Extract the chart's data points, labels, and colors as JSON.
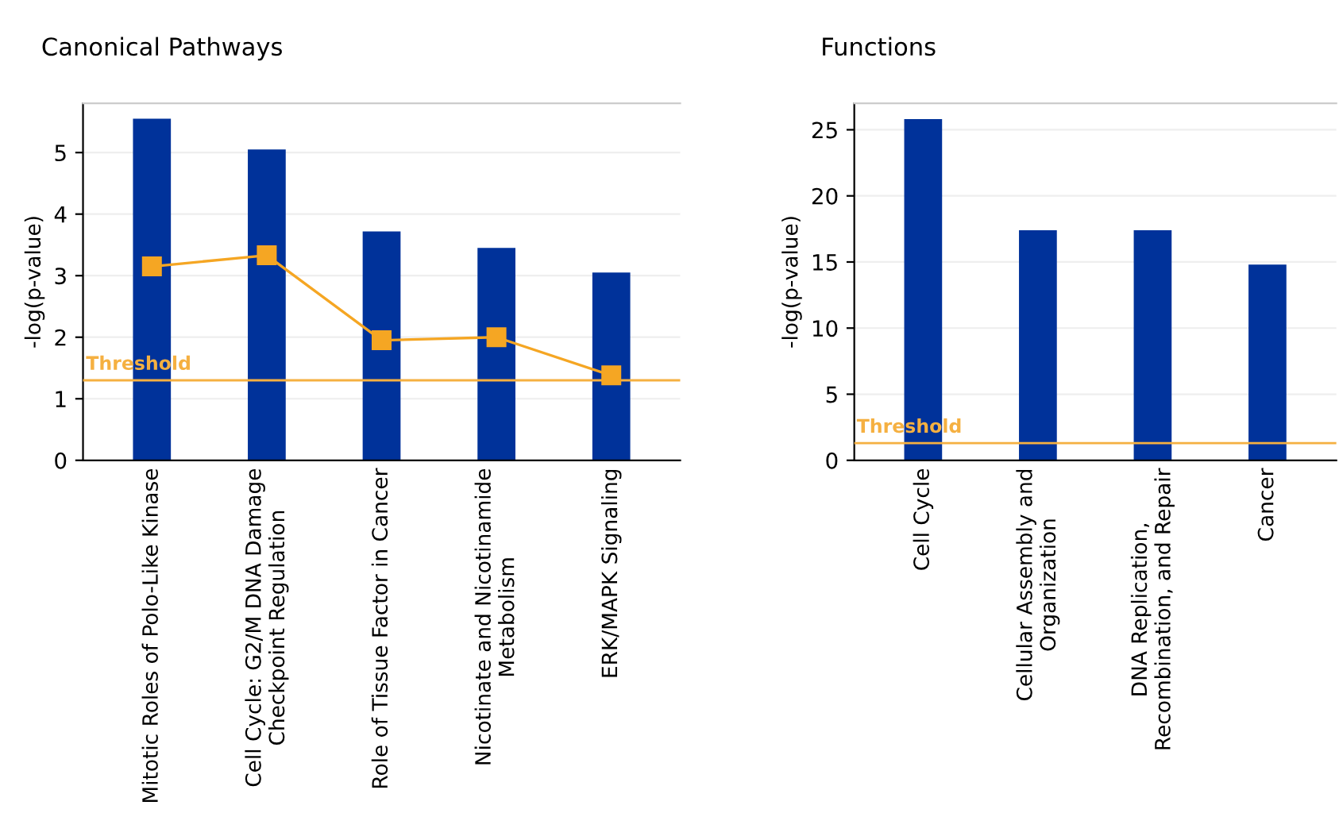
{
  "chart_data": [
    {
      "type": "bar",
      "title": "Canonical Pathways",
      "ylabel": "-log(p-value)",
      "categories": [
        "Mitotic Roles of Polo-Like Kinase",
        "Cell Cycle: G2/M DNA Damage\nCheckpoint Regulation",
        "Role of Tissue Factor in Cancer",
        "Nicotinate and Nicotinamide\nMetabolism",
        "ERK/MAPK Signaling"
      ],
      "series": [
        {
          "color": "#00329a",
          "values": [
            5.55,
            5.05,
            3.72,
            3.45,
            3.05
          ]
        },
        {
          "type": "line",
          "color": "#f5a623",
          "values": [
            3.15,
            3.33,
            1.95,
            2.0,
            1.38
          ]
        }
      ],
      "marker": "square",
      "ylim": [
        0,
        5.8
      ],
      "yticks": [
        0,
        1,
        2,
        3,
        4,
        5
      ],
      "grid": "y",
      "ref_lines": [
        {
          "axis": "y",
          "value": 1.3,
          "label": "Threshold",
          "color": "#f5b041"
        }
      ]
    },
    {
      "type": "bar",
      "title": "Functions",
      "ylabel": "-log(p-value)",
      "categories": [
        "Cell Cycle",
        "Cellular Assembly and\nOrganization",
        "DNA Replication,\nRecombination, and Repair",
        "Cancer"
      ],
      "series": [
        {
          "color": "#00329a",
          "values": [
            25.8,
            17.4,
            17.4,
            14.8
          ]
        }
      ],
      "ylim": [
        0,
        27
      ],
      "yticks": [
        0,
        5,
        10,
        15,
        20,
        25
      ],
      "grid": "y",
      "ref_lines": [
        {
          "axis": "y",
          "value": 1.3,
          "label": "Threshold",
          "color": "#f5b041"
        }
      ]
    }
  ]
}
